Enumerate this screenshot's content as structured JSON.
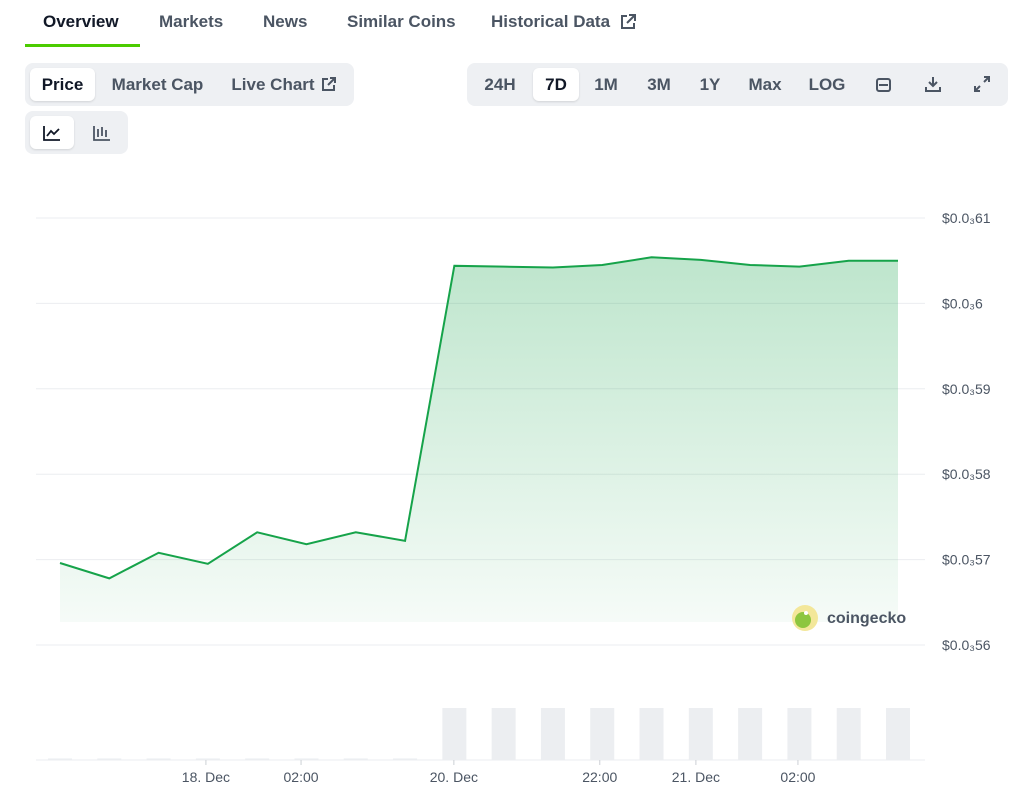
{
  "tabs": [
    "Overview",
    "Markets",
    "News",
    "Similar Coins",
    "Historical Data"
  ],
  "price_buttons": [
    "Price",
    "Market Cap",
    "Live Chart"
  ],
  "range_buttons": [
    "24H",
    "7D",
    "1M",
    "3M",
    "1Y",
    "Max",
    "LOG"
  ],
  "watermark": "coingecko",
  "chart_data": {
    "type": "line",
    "color": "#16a34a",
    "values": [
      0.0005696,
      0.0005678,
      0.0005708,
      0.0005695,
      0.0005732,
      0.0005718,
      0.0005732,
      0.0005722,
      0.0006044,
      0.0006043,
      0.0006042,
      0.0006045,
      0.0006054,
      0.0006051,
      0.0006045,
      0.0006043,
      0.000605,
      0.000605
    ],
    "volume": [
      0.03,
      0.03,
      0.03,
      0.03,
      0.03,
      0.03,
      0.03,
      0.03,
      1,
      1,
      1,
      1,
      1,
      1,
      1,
      1,
      1,
      1
    ],
    "volume_lim": [
      0,
      1
    ],
    "xlim": [
      0,
      17
    ],
    "xticks": [
      {
        "value": 2.96,
        "label": "18. Dec"
      },
      {
        "value": 4.89,
        "label": "02:00"
      },
      {
        "value": 7.99,
        "label": "20. Dec"
      },
      {
        "value": 10.95,
        "label": "22:00"
      },
      {
        "value": 12.9,
        "label": "21. Dec"
      },
      {
        "value": 14.97,
        "label": "02:00"
      }
    ],
    "ylim": [
      0.00056,
      0.00061
    ],
    "yticks": [
      {
        "value": 0.00061,
        "label": "$0.0₃61"
      },
      {
        "value": 0.0006,
        "label": "$0.0₃6"
      },
      {
        "value": 0.00059,
        "label": "$0.0₃59"
      },
      {
        "value": 0.00058,
        "label": "$0.0₃58"
      },
      {
        "value": 0.00057,
        "label": "$0.0₃57"
      },
      {
        "value": 0.00056,
        "label": "$0.0₃56"
      }
    ],
    "grid": true
  }
}
